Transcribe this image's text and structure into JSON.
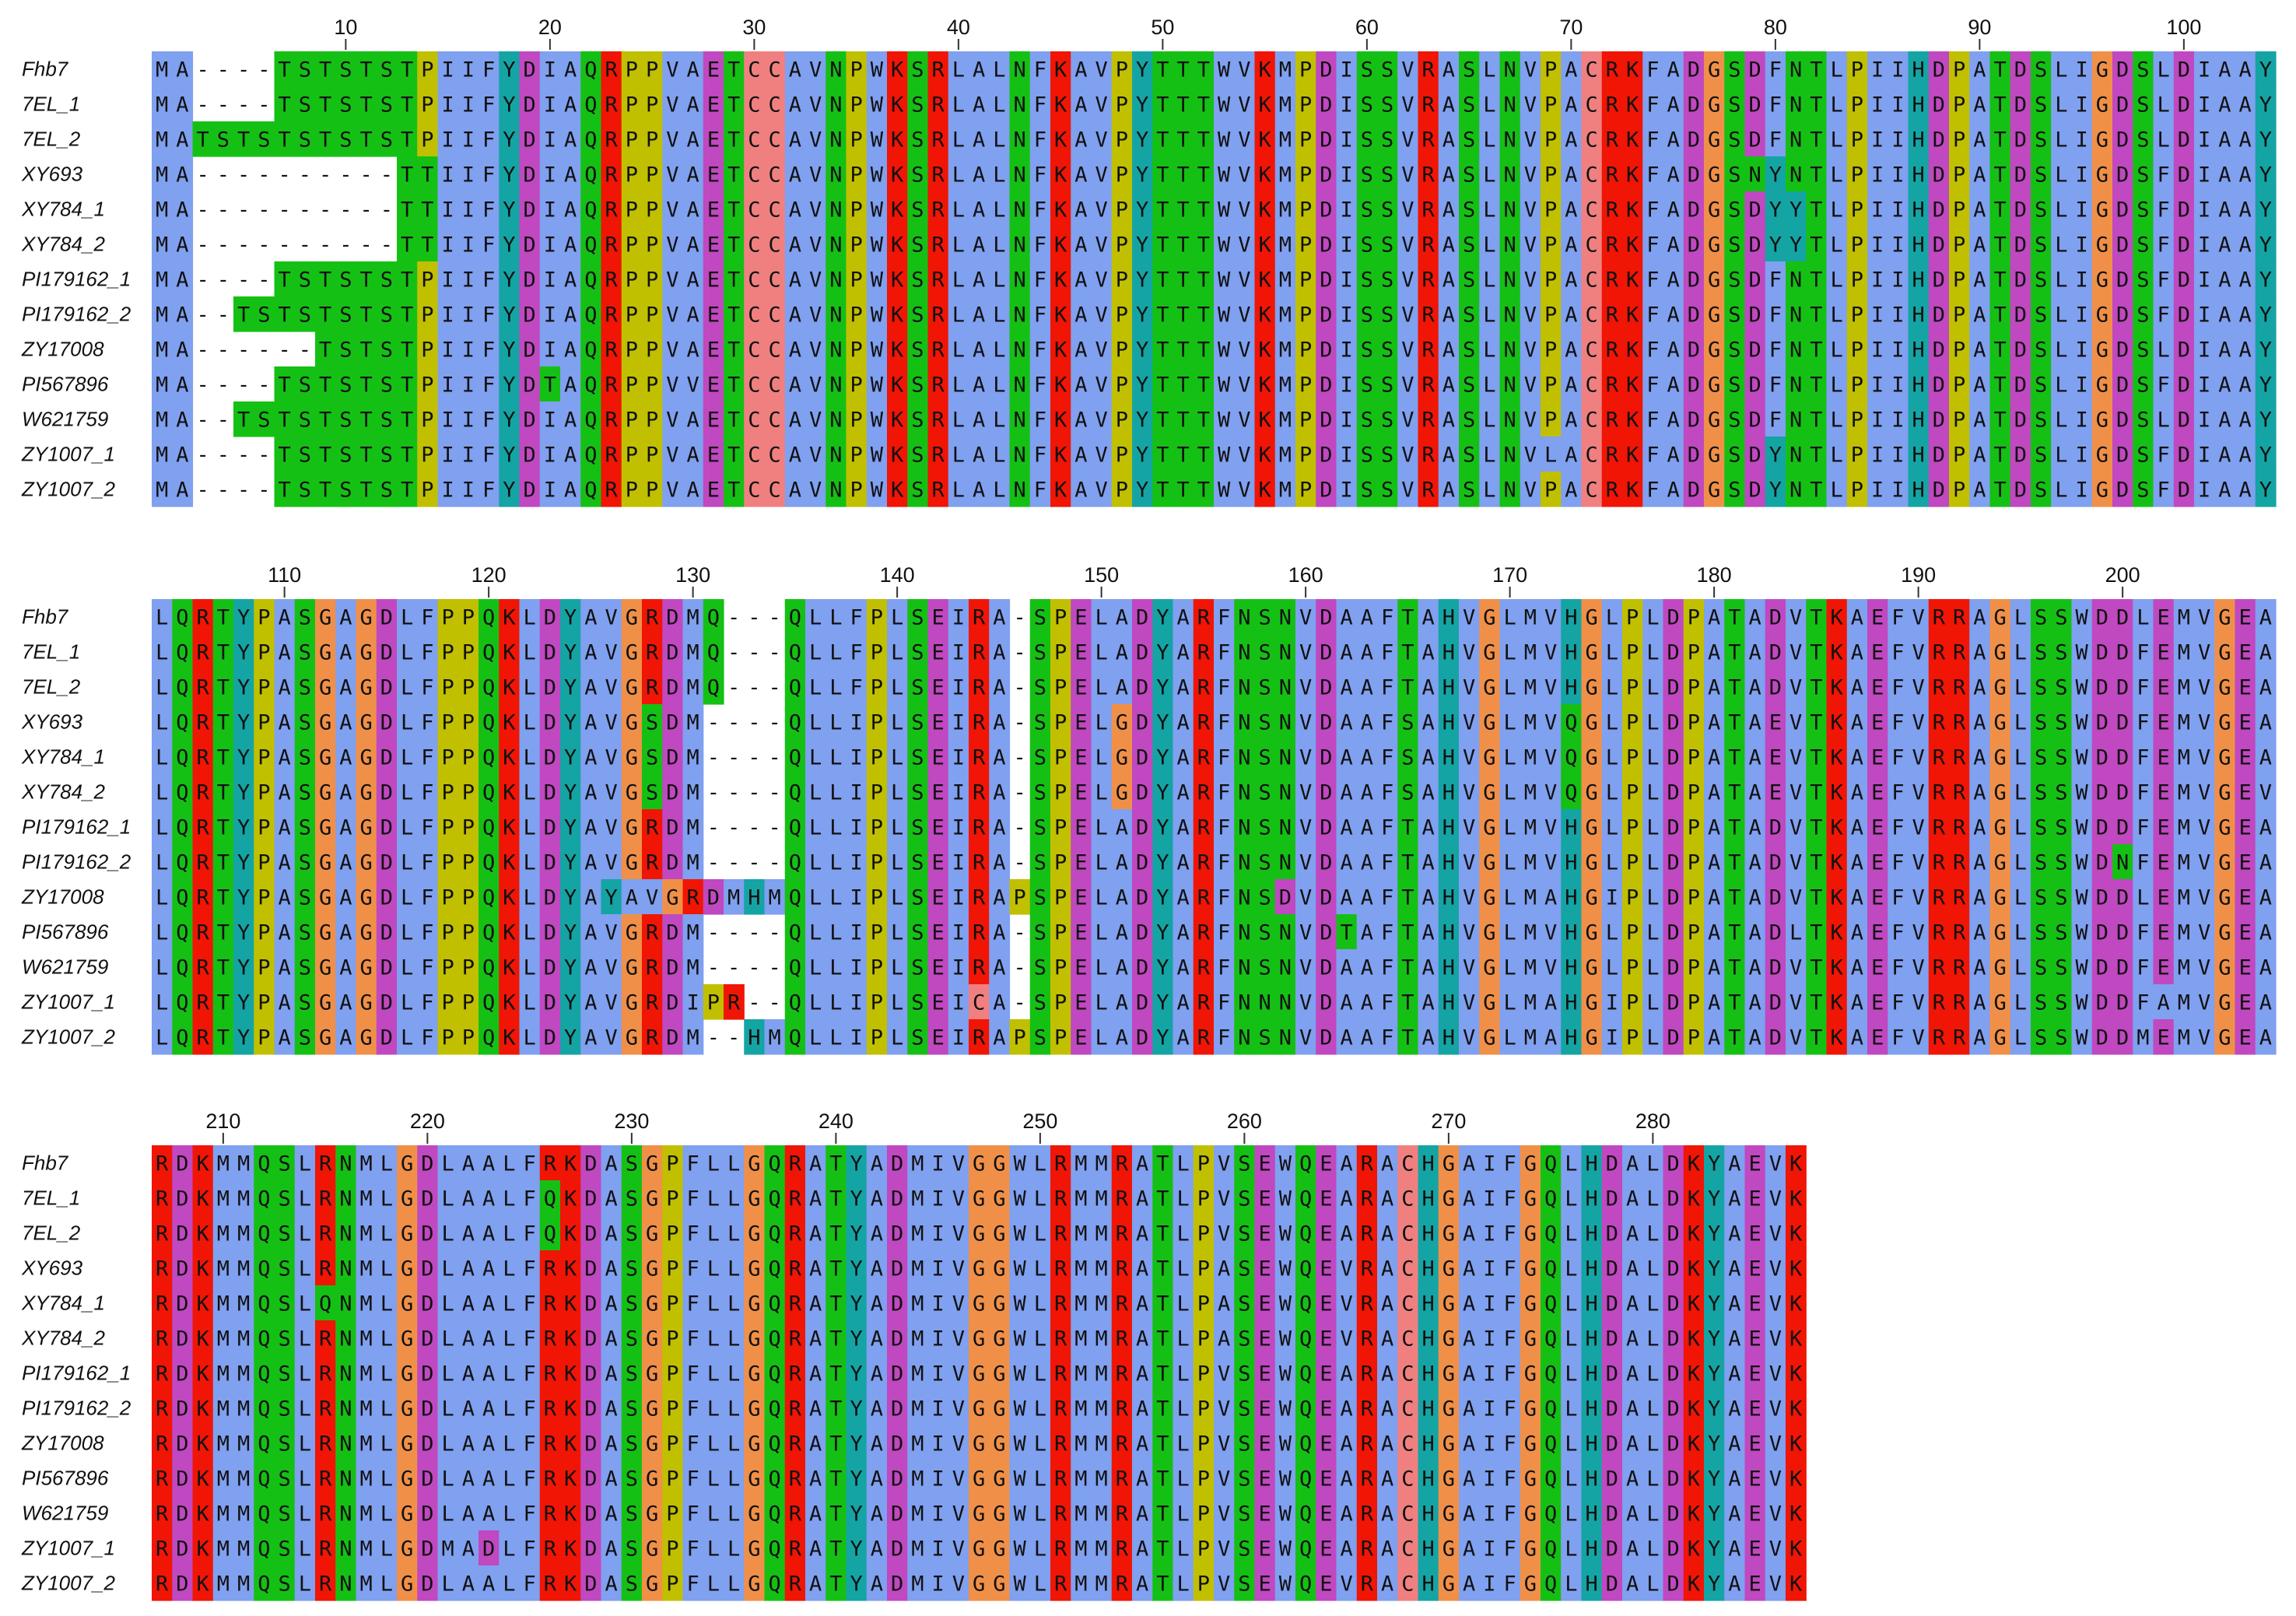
{
  "alignment": {
    "names": [
      "Fhb7",
      "7EL_1",
      "7EL_2",
      "XY693",
      "XY784_1",
      "XY784_2",
      "PI179162_1",
      "PI179162_2",
      "ZY17008",
      "PI567896",
      "W621759",
      "ZY1007_1",
      "ZY1007_2"
    ],
    "blocks": [
      {
        "start": 1,
        "ticks": [
          10,
          20,
          30,
          40,
          50,
          60,
          70,
          80,
          90,
          100
        ],
        "rows": [
          "MA----TSTSTSTPIIFYDIAQRPPVAETCCAVNPWKSRLALNFKAVPYTTTWVKMPDISSVRASLNVPACRKFADGSDFNTLPIIHDPATDSLIGDSLDIAAY",
          "MA----TSTSTSTPIIFYDIAQRPPVAETCCAVNPWKSRLALNFKAVPYTTTWVKMPDISSVRASLNVPACRKFADGSDFNTLPIIHDPATDSLIGDSLDIAAY",
          "MATSTSTSTSTSTPIIFYDIAQRPPVAETCCAVNPWKSRLALNFKAVPYTTTWVKMPDISSVRASLNVPACRKFADGSDFNTLPIIHDPATDSLIGDSLDIAAY",
          "MA----------TTIIFYDIAQRPPVAETCCAVNPWKSRLALNFKAVPYTTTWVKMPDISSVRASLNVPACRKFADGSNYNTLPIIHDPATDSLIGDSFDIAAY",
          "MA----------TTIIFYDIAQRPPVAETCCAVNPWKSRLALNFKAVPYTTTWVKMPDISSVRASLNVPACRKFADGSDYYTLPIIHDPATDSLIGDSFDIAAY",
          "MA----------TTIIFYDIAQRPPVAETCCAVNPWKSRLALNFKAVPYTTTWVKMPDISSVRASLNVPACRKFADGSDYYTLPIIHDPATDSLIGDSFDIAAY",
          "MA----TSTSTSTPIIFYDIAQRPPVAETCCAVNPWKSRLALNFKAVPYTTTWVKMPDISSVRASLNVPACRKFADGSDFNTLPIIHDPATDSLIGDSFDIAAY",
          "MA--TSTSTSTSTPIIFYDIAQRPPVAETCCAVNPWKSRLALNFKAVPYTTTWVKMPDISSVRASLNVPACRKFADGSDFNTLPIIHDPATDSLIGDSFDIAAY",
          "MA------TSTSTPIIFYDIAQRPPVAETCCAVNPWKSRLALNFKAVPYTTTWVKMPDISSVRASLNVPACRKFADGSDFNTLPIIHDPATDSLIGDSLDIAAY",
          "MA----TSTSTSTPIIFYDTAQRPPVVETCCAVNPWKSRLALNFKAVPYTTTWVKMPDISSVRASLNVPACRKFADGSDFNTLPIIHDPATDSLIGDSFDIAAY",
          "MA--TSTSTSTSTPIIFYDIAQRPPVAETCCAVNPWKSRLALNFKAVPYTTTWVKMPDISSVRASLNVPACRKFADGSDFNTLPIIHDPATDSLIGDSLDIAAY",
          "MA----TSTSTSTPIIFYDIAQRPPVAETCCAVNPWKSRLALNFKAVPYTTTWVKMPDISSVRASLNVLACRKFADGSDYNTLPIIHDPATDSLIGDSFDIAAY",
          "MA----TSTSTSTPIIFYDIAQRPPVAETCCAVNPWKSRLALNFKAVPYTTTWVKMPDISSVRASLNVPACRKFADGSDYNTLPIIHDPATDSLIGDSFDIAAY"
        ]
      },
      {
        "start": 104,
        "ticks": [
          110,
          120,
          130,
          140,
          150,
          160,
          170,
          180,
          190,
          200
        ],
        "rows": [
          "LQRTYPASGAGDLFPPQKLDYAVGRDMQ---QLLFPLSEIRA-SPELADYARFNSNVDAAFTAHVGLMVHGLPLDPATADVTKAEFVRRAGLSSWDDLEMVGEA",
          "LQRTYPASGAGDLFPPQKLDYAVGRDMQ---QLLFPLSEIRA-SPELADYARFNSNVDAAFTAHVGLMVHGLPLDPATADVTKAEFVRRAGLSSWDDFEMVGEA",
          "LQRTYPASGAGDLFPPQKLDYAVGRDMQ---QLLFPLSEIRA-SPELADYARFNSNVDAAFTAHVGLMVHGLPLDPATADVTKAEFVRRAGLSSWDDFEMVGEA",
          "LQRTYPASGAGDLFPPQKLDYAVGSDM----QLLIPLSEIRA-SPELGDYARFNSNVDAAFSAHVGLMVQGLPLDPATAEVTKAEFVRRAGLSSWDDFEMVGEA",
          "LQRTYPASGAGDLFPPQKLDYAVGSDM----QLLIPLSEIRA-SPELGDYARFNSNVDAAFSAHVGLMVQGLPLDPATAEVTKAEFVRRAGLSSWDDFEMVGEA",
          "LQRTYPASGAGDLFPPQKLDYAVGSDM----QLLIPLSEIRA-SPELGDYARFNSNVDAAFSAHVGLMVQGLPLDPATAEVTKAEFVRRAGLSSWDDFEMVGEV",
          "LQRTYPASGAGDLFPPQKLDYAVGRDM----QLLIPLSEIRA-SPELADYARFNSNVDAAFTAHVGLMVHGLPLDPATADVTKAEFVRRAGLSSWDDFEMVGEA",
          "LQRTYPASGAGDLFPPQKLDYAVGRDM----QLLIPLSEIRA-SPELADYARFNSNVDAAFTAHVGLMVHGLPLDPATADVTKAEFVRRAGLSSWDNFEMVGEA",
          "LQRTYPASGAGDLFPPQKLDYAYAVGRDMHMQLLIPLSEIRAPSPELADYARFNSDVDAAFTAHVGLMAHGIPLDPATADVTKAEFVRRAGLSSWDDLEMVGEA",
          "LQRTYPASGAGDLFPPQKLDYAVGRDM----QLLIPLSEIRA-SPELADYARFNSNVDTAFTAHVGLMVHGLPLDPATADLTKAEFVRRAGLSSWDDFEMVGEA",
          "LQRTYPASGAGDLFPPQKLDYAVGRDM----QLLIPLSEIRA-SPELADYARFNSNVDAAFTAHVGLMVHGLPLDPATADVTKAEFVRRAGLSSWDDFEMVGEA",
          "LQRTYPASGAGDLFPPQKLDYAVGRDIPR--QLLIPLSEICA-SPELADYARFNNNVDAAFTAHVGLMAHGIPLDPATADVTKAEFVRRAGLSSWDDFAMVGEA",
          "LQRTYPASGAGDLFPPQKLDYAVGRDM--HMQLLIPLSEIRAPSPELADYARFNSNVDAAFTAHVGLMAHGIPLDPATADVTKAEFVRRAGLSSWDDMEMVGEA"
        ]
      },
      {
        "start": 207,
        "ticks": [
          210,
          220,
          230,
          240,
          250,
          260,
          270,
          280
        ],
        "rows": [
          "RDKMMQSLRNMLGDLAALFRKDASGPFLLGQRATYADMIVGGWLRMMRATLPVSEWQEARACHGAIFGQLHDALDKYAEVK",
          "RDKMMQSLRNMLGDLAALFQKDASGPFLLGQRATYADMIVGGWLRMMRATLPVSEWQEARACHGAIFGQLHDALDKYAEVK",
          "RDKMMQSLRNMLGDLAALFQKDASGPFLLGQRATYADMIVGGWLRMMRATLPVSEWQEARACHGAIFGQLHDALDKYAEVK",
          "RDKMMQSLRNMLGDLAALFRKDASGPFLLGQRATYADMIVGGWLRMMRATLPASEWQEVRACHGAIFGQLHDALDKYAEVK",
          "RDKMMQSLQNMLGDLAALFRKDASGPFLLGQRATYADMIVGGWLRMMRATLPASEWQEVRACHGAIFGQLHDALDKYAEVK",
          "RDKMMQSLRNMLGDLAALFRKDASGPFLLGQRATYADMIVGGWLRMMRATLPASEWQEVRACHGAIFGQLHDALDKYAEVK",
          "RDKMMQSLRNMLGDLAALFRKDASGPFLLGQRATYADMIVGGWLRMMRATLPVSEWQEARACHGAIFGQLHDALDKYAEVK",
          "RDKMMQSLRNMLGDLAALFRKDASGPFLLGQRATYADMIVGGWLRMMRATLPVSEWQEARACHGAIFGQLHDALDKYAEVK",
          "RDKMMQSLRNMLGDLAALFRKDASGPFLLGQRATYADMIVGGWLRMMRATLPVSEWQEARACHGAIFGQLHDALDKYAEVK",
          "RDKMMQSLRNMLGDLAALFRKDASGPFLLGQRATYADMIVGGWLRMMRATLPVSEWQEARACHGAIFGQLHDALDKYAEVK",
          "RDKMMQSLRNMLGDLAALFRKDASGPFLLGQRATYADMIVGGWLRMMRATLPVSEWQEARACHGAIFGQLHDALDKYAEVK",
          "RDKMMQSLRNMLGDMADLFRKDASGPFLLGQRATYADMIVGGWLRMMRATLPVSEWQEARACHGAIFGQLHDALDKYAEVK",
          "RDKMMQSLRNMLGDLAALFRKDASGPFLLGQRATYADMIVGGWLRMMRATLPVSEWQEVRACHGAIFGQLHDALDKYAEVK"
        ]
      }
    ],
    "colors": {
      "hydrophobic": "#80a0f0",
      "polar": "#15c015",
      "positive": "#f01505",
      "negative": "#c048c0",
      "cysteine": "#f08080",
      "glycine": "#f09048",
      "proline": "#c0c000",
      "aromatic": "#15a4a4",
      "gap": "#ffffff"
    }
  }
}
